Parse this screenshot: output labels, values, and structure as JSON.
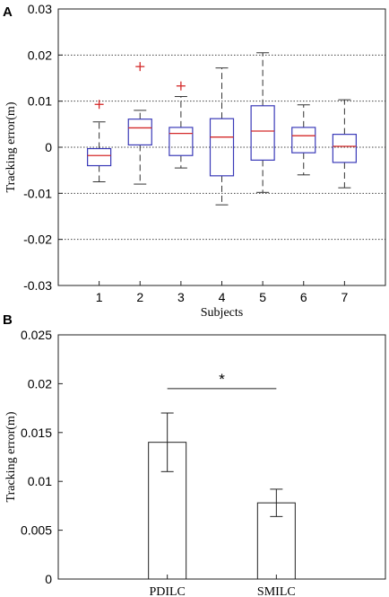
{
  "chart_data": [
    {
      "panel_label": "A",
      "type": "box",
      "xlabel": "Subjects",
      "ylabel": "Tracking error(m)",
      "categories": [
        "1",
        "2",
        "3",
        "4",
        "5",
        "6",
        "7"
      ],
      "ylim": [
        -0.03,
        0.03
      ],
      "yticks": [
        "0.03",
        "0.02",
        "0.01",
        "0",
        "-0.01",
        "-0.02",
        "-0.03"
      ],
      "grid": "horizontal dotted",
      "colors": {
        "box": "#3a3ab8",
        "median": "#d42a2a",
        "outlier": "#d42a2a",
        "whisker": "#333333"
      },
      "boxes": [
        {
          "category": "1",
          "whisker_low": -0.0075,
          "q1": -0.004,
          "median": -0.0018,
          "q3": -0.0003,
          "whisker_high": 0.0055,
          "outliers": [
            0.0093
          ]
        },
        {
          "category": "2",
          "whisker_low": -0.008,
          "q1": 0.0005,
          "median": 0.0042,
          "q3": 0.0061,
          "whisker_high": 0.008,
          "outliers": [
            0.0175
          ]
        },
        {
          "category": "3",
          "whisker_low": -0.0045,
          "q1": -0.0018,
          "median": 0.003,
          "q3": 0.0043,
          "whisker_high": 0.011,
          "outliers": [
            0.0133
          ]
        },
        {
          "category": "4",
          "whisker_low": -0.0125,
          "q1": -0.0062,
          "median": 0.0022,
          "q3": 0.0062,
          "whisker_high": 0.0172,
          "outliers": []
        },
        {
          "category": "5",
          "whisker_low": -0.0098,
          "q1": -0.0028,
          "median": 0.0035,
          "q3": 0.009,
          "whisker_high": 0.0205,
          "outliers": []
        },
        {
          "category": "6",
          "whisker_low": -0.006,
          "q1": -0.0012,
          "median": 0.0025,
          "q3": 0.0043,
          "whisker_high": 0.0092,
          "outliers": []
        },
        {
          "category": "7",
          "whisker_low": -0.0088,
          "q1": -0.0033,
          "median": 0.0002,
          "q3": 0.0028,
          "whisker_high": 0.0103,
          "outliers": []
        }
      ]
    },
    {
      "panel_label": "B",
      "type": "bar",
      "ylabel": "Tracking error(m)",
      "categories": [
        "PDILC",
        "SMILC"
      ],
      "values": [
        0.014,
        0.0078
      ],
      "errors": [
        0.003,
        0.0014
      ],
      "ylim": [
        0,
        0.025
      ],
      "yticks": [
        "0",
        "0.005",
        "0.01",
        "0.015",
        "0.02",
        "0.025"
      ],
      "significance_marker": "*",
      "grid": "off"
    }
  ]
}
